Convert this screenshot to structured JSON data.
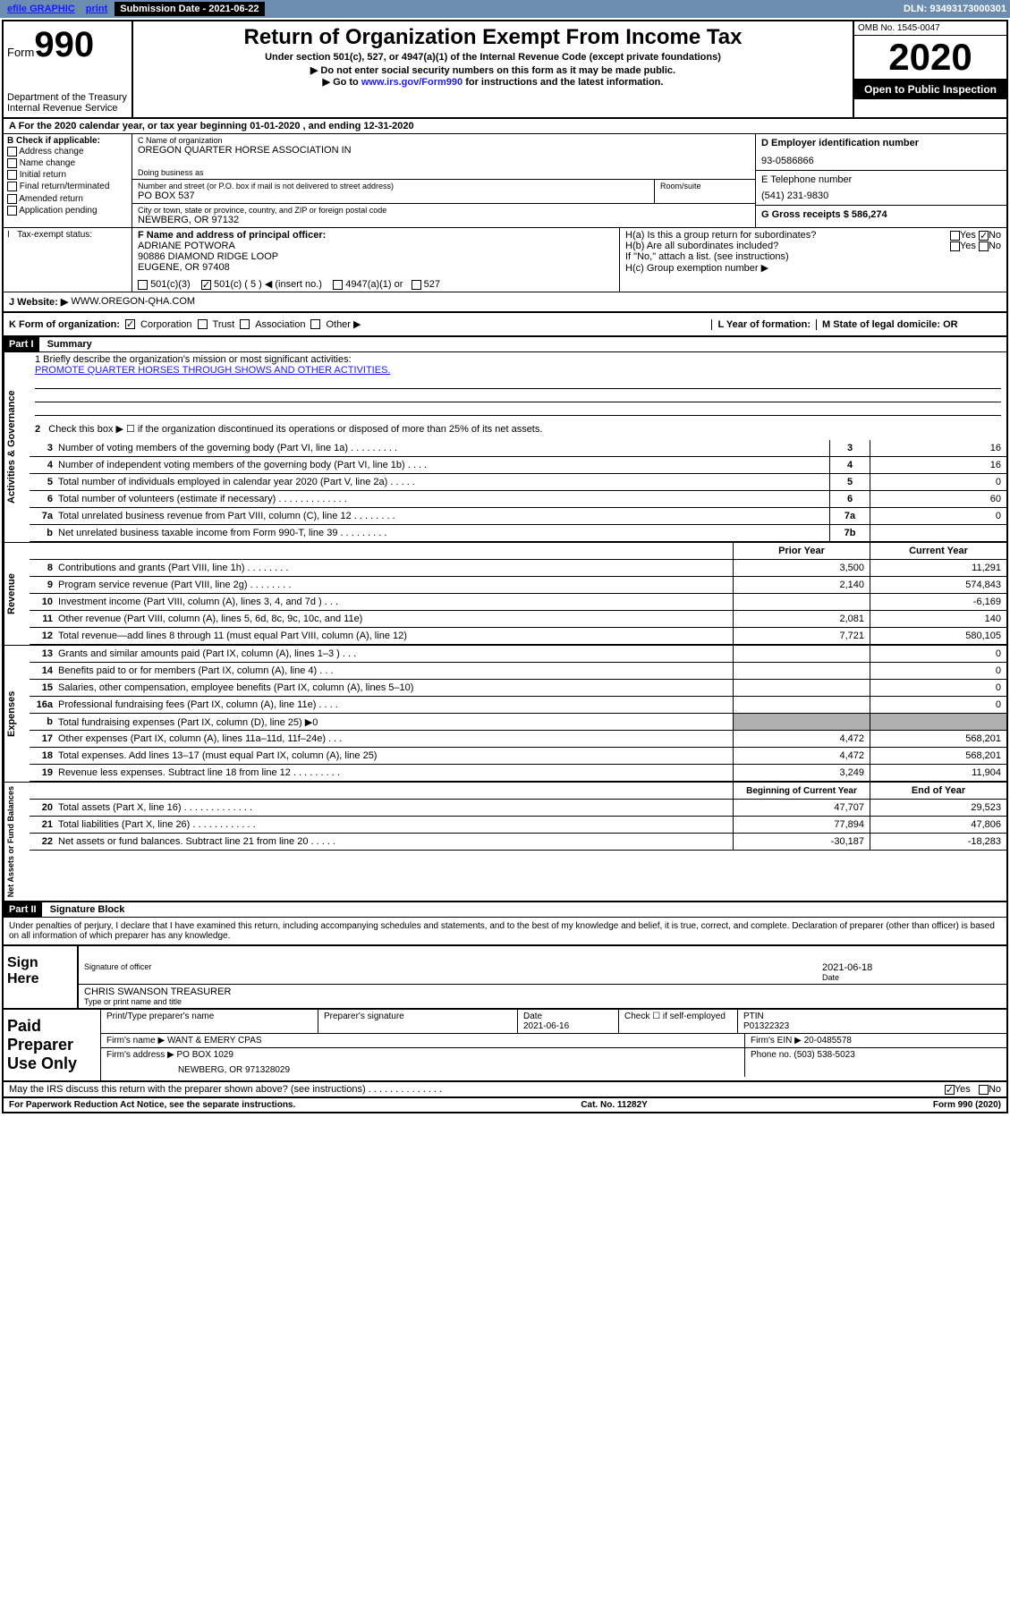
{
  "topbar": {
    "efile": "efile GRAPHIC",
    "print": "print",
    "submission_label": "Submission Date - 2021-06-22",
    "dln": "DLN: 93493173000301"
  },
  "header": {
    "form_word": "Form",
    "form_num": "990",
    "dept": "Department of the Treasury",
    "irs": "Internal Revenue Service",
    "title": "Return of Organization Exempt From Income Tax",
    "subtitle": "Under section 501(c), 527, or 4947(a)(1) of the Internal Revenue Code (except private foundations)",
    "instr1": "▶ Do not enter social security numbers on this form as it may be made public.",
    "instr2_pre": "▶ Go to ",
    "instr2_link": "www.irs.gov/Form990",
    "instr2_post": " for instructions and the latest information.",
    "omb": "OMB No. 1545-0047",
    "year": "2020",
    "open": "Open to Public Inspection"
  },
  "section_a": {
    "text": "A For the 2020 calendar year, or tax year beginning 01-01-2020    , and ending 12-31-2020"
  },
  "section_b": {
    "label": "B Check if applicable:",
    "items": [
      "Address change",
      "Name change",
      "Initial return",
      "Final return/terminated",
      "Amended return",
      "Application pending"
    ]
  },
  "section_c": {
    "name_label": "C Name of organization",
    "name": "OREGON QUARTER HORSE ASSOCIATION IN",
    "dba_label": "Doing business as",
    "addr_label": "Number and street (or P.O. box if mail is not delivered to street address)",
    "room_label": "Room/suite",
    "addr": "PO BOX 537",
    "city_label": "City or town, state or province, country, and ZIP or foreign postal code",
    "city": "NEWBERG, OR  97132"
  },
  "section_d": {
    "label": "D Employer identification number",
    "ein": "93-0586866"
  },
  "section_e": {
    "label": "E Telephone number",
    "phone": "(541) 231-9830"
  },
  "section_g": {
    "label": "G Gross receipts $ 586,274"
  },
  "section_f": {
    "label": "F  Name and address of principal officer:",
    "name": "ADRIANE POTWORA",
    "addr1": "90886 DIAMOND RIDGE LOOP",
    "addr2": "EUGENE, OR  97408"
  },
  "section_h": {
    "ha": "H(a)  Is this a group return for subordinates?",
    "hb": "H(b)  Are all subordinates included?",
    "hb_note": "If \"No,\" attach a list. (see instructions)",
    "hc": "H(c)  Group exemption number ▶",
    "yes": "Yes",
    "no": "No"
  },
  "section_i": {
    "label": "I   Tax-exempt status:",
    "opt1": "501(c)(3)",
    "opt2": "501(c) ( 5 ) ◀ (insert no.)",
    "opt3": "4947(a)(1) or",
    "opt4": "527"
  },
  "section_j": {
    "label": "J   Website: ▶",
    "url": "WWW.OREGON-QHA.COM"
  },
  "section_k": {
    "label": "K Form of organization:",
    "opts": [
      "Corporation",
      "Trust",
      "Association",
      "Other ▶"
    ],
    "l_label": "L Year of formation:",
    "m_label": "M State of legal domicile: OR"
  },
  "part1": {
    "header": "Part I",
    "title": "Summary",
    "mission_label": "1  Briefly describe the organization's mission or most significant activities:",
    "mission": "PROMOTE QUARTER HORSES THROUGH SHOWS AND OTHER ACTIVITIES.",
    "line2": "Check this box ▶ ☐  if the organization discontinued its operations or disposed of more than 25% of its net assets.",
    "sections": {
      "governance": "Activities & Governance",
      "revenue": "Revenue",
      "expenses": "Expenses",
      "netassets": "Net Assets or Fund Balances"
    },
    "rows": [
      {
        "n": "3",
        "label": "Number of voting members of the governing body (Part VI, line 1a)  .  .  .  .  .  .  .  .  .",
        "box": "3",
        "val": "16"
      },
      {
        "n": "4",
        "label": "Number of independent voting members of the governing body (Part VI, line 1b)  .  .  .  .",
        "box": "4",
        "val": "16"
      },
      {
        "n": "5",
        "label": "Total number of individuals employed in calendar year 2020 (Part V, line 2a)  .  .  .  .  .",
        "box": "5",
        "val": "0"
      },
      {
        "n": "6",
        "label": "Total number of volunteers (estimate if necessary)  .  .  .  .  .  .  .  .  .  .  .  .  .",
        "box": "6",
        "val": "60"
      },
      {
        "n": "7a",
        "label": "Total unrelated business revenue from Part VIII, column (C), line 12  .  .  .  .  .  .  .  .",
        "box": "7a",
        "val": "0"
      },
      {
        "n": "b",
        "label": "Net unrelated business taxable income from Form 990-T, line 39  .  .  .  .  .  .  .  .  .",
        "box": "7b",
        "val": ""
      }
    ],
    "year_header": {
      "prior": "Prior Year",
      "current": "Current Year"
    },
    "revenue_rows": [
      {
        "n": "8",
        "label": "Contributions and grants (Part VIII, line 1h)  .  .  .  .  .  .  .  .",
        "prior": "3,500",
        "current": "11,291"
      },
      {
        "n": "9",
        "label": "Program service revenue (Part VIII, line 2g)  .  .  .  .  .  .  .  .",
        "prior": "2,140",
        "current": "574,843"
      },
      {
        "n": "10",
        "label": "Investment income (Part VIII, column (A), lines 3, 4, and 7d )  .  .  .",
        "prior": "",
        "current": "-6,169"
      },
      {
        "n": "11",
        "label": "Other revenue (Part VIII, column (A), lines 5, 6d, 8c, 9c, 10c, and 11e)",
        "prior": "2,081",
        "current": "140"
      },
      {
        "n": "12",
        "label": "Total revenue—add lines 8 through 11 (must equal Part VIII, column (A), line 12)",
        "prior": "7,721",
        "current": "580,105"
      }
    ],
    "expense_rows": [
      {
        "n": "13",
        "label": "Grants and similar amounts paid (Part IX, column (A), lines 1–3 )  .  .  .",
        "prior": "",
        "current": "0"
      },
      {
        "n": "14",
        "label": "Benefits paid to or for members (Part IX, column (A), line 4)  .  .  .",
        "prior": "",
        "current": "0"
      },
      {
        "n": "15",
        "label": "Salaries, other compensation, employee benefits (Part IX, column (A), lines 5–10)",
        "prior": "",
        "current": "0"
      },
      {
        "n": "16a",
        "label": "Professional fundraising fees (Part IX, column (A), line 11e)  .  .  .  .",
        "prior": "",
        "current": "0"
      },
      {
        "n": "b",
        "label": "Total fundraising expenses (Part IX, column (D), line 25) ▶0",
        "prior": "SHADED",
        "current": "SHADED"
      },
      {
        "n": "17",
        "label": "Other expenses (Part IX, column (A), lines 11a–11d, 11f–24e)  .  .  .",
        "prior": "4,472",
        "current": "568,201"
      },
      {
        "n": "18",
        "label": "Total expenses. Add lines 13–17 (must equal Part IX, column (A), line 25)",
        "prior": "4,472",
        "current": "568,201"
      },
      {
        "n": "19",
        "label": "Revenue less expenses. Subtract line 18 from line 12  .  .  .  .  .  .  .  .  .",
        "prior": "3,249",
        "current": "11,904"
      }
    ],
    "balance_header": {
      "begin": "Beginning of Current Year",
      "end": "End of Year"
    },
    "balance_rows": [
      {
        "n": "20",
        "label": "Total assets (Part X, line 16)  .  .  .  .  .  .  .  .  .  .  .  .  .",
        "prior": "47,707",
        "current": "29,523"
      },
      {
        "n": "21",
        "label": "Total liabilities (Part X, line 26)  .  .  .  .  .  .  .  .  .  .  .  .",
        "prior": "77,894",
        "current": "47,806"
      },
      {
        "n": "22",
        "label": "Net assets or fund balances. Subtract line 21 from line 20  .  .  .  .  .",
        "prior": "-30,187",
        "current": "-18,283"
      }
    ]
  },
  "part2": {
    "header": "Part II",
    "title": "Signature Block",
    "declaration": "Under penalties of perjury, I declare that I have examined this return, including accompanying schedules and statements, and to the best of my knowledge and belief, it is true, correct, and complete. Declaration of preparer (other than officer) is based on all information of which preparer has any knowledge."
  },
  "sign": {
    "label": "Sign Here",
    "sig_label": "Signature of officer",
    "date_label": "Date",
    "date": "2021-06-18",
    "name": "CHRIS SWANSON  TREASURER",
    "name_label": "Type or print name and title"
  },
  "preparer": {
    "label": "Paid Preparer Use Only",
    "h1": "Print/Type preparer's name",
    "h2": "Preparer's signature",
    "h3": "Date",
    "date": "2021-06-16",
    "h4": "Check ☐ if self-employed",
    "h5": "PTIN",
    "ptin": "P01322323",
    "firm_label": "Firm's name     ▶",
    "firm": "WANT & EMERY CPAS",
    "ein_label": "Firm's EIN ▶",
    "ein": "20-0485578",
    "addr_label": "Firm's address ▶",
    "addr1": "PO BOX 1029",
    "addr2": "NEWBERG, OR  971328029",
    "phone_label": "Phone no.",
    "phone": "(503) 538-5023"
  },
  "footer": {
    "discuss": "May the IRS discuss this return with the preparer shown above? (see instructions)  .  .  .  .  .  .  .  .  .  .  .  .  .  .",
    "yes": "Yes",
    "no": "No",
    "paperwork": "For Paperwork Reduction Act Notice, see the separate instructions.",
    "cat": "Cat. No. 11282Y",
    "form": "Form 990 (2020)"
  }
}
